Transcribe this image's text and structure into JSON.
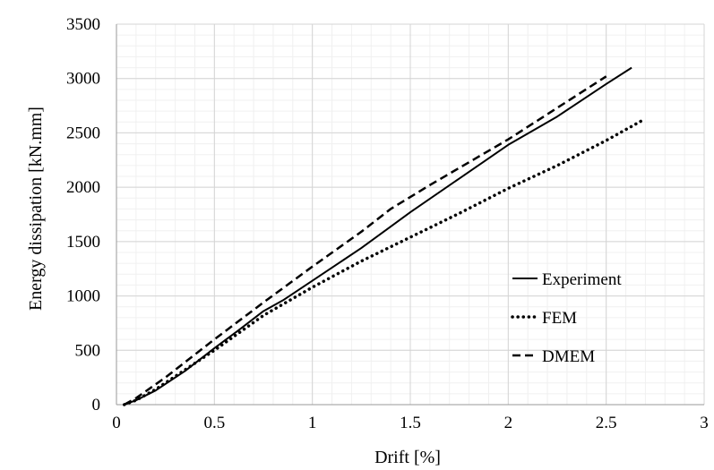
{
  "chart_data": {
    "type": "line",
    "title": "",
    "xlabel": "Drift [%]",
    "ylabel": "Energy dissipation [kN.mm]",
    "xlim": [
      0,
      3
    ],
    "ylim": [
      0,
      3500
    ],
    "x_major_ticks": [
      0,
      0.5,
      1,
      1.5,
      2,
      2.5,
      3
    ],
    "x_tick_labels": [
      "0",
      "0.5",
      "1",
      "1.5",
      "2",
      "2.5",
      "3"
    ],
    "y_major_ticks": [
      0,
      500,
      1000,
      1500,
      2000,
      2500,
      3000,
      3500
    ],
    "y_tick_labels": [
      "0",
      "500",
      "1000",
      "1500",
      "2000",
      "2500",
      "3000",
      "3500"
    ],
    "grid": "major and minor",
    "legend_position": "right",
    "series": [
      {
        "name": "Experiment",
        "style": "solid",
        "x": [
          0.04,
          0.1,
          0.2,
          0.35,
          0.5,
          0.62,
          0.75,
          0.85,
          1.0,
          1.25,
          1.5,
          1.75,
          2.0,
          2.25,
          2.5,
          2.63
        ],
        "y": [
          0,
          40,
          130,
          310,
          520,
          680,
          860,
          960,
          1140,
          1440,
          1770,
          2080,
          2390,
          2650,
          2950,
          3100
        ]
      },
      {
        "name": "FEM",
        "style": "dotted",
        "x": [
          0.04,
          0.1,
          0.2,
          0.35,
          0.5,
          0.75,
          1.0,
          1.25,
          1.5,
          1.75,
          2.0,
          2.25,
          2.5,
          2.7
        ],
        "y": [
          0,
          40,
          140,
          320,
          500,
          820,
          1080,
          1320,
          1540,
          1760,
          1990,
          2200,
          2430,
          2630
        ]
      },
      {
        "name": "DMEM",
        "style": "dashed",
        "x": [
          0.04,
          0.1,
          0.25,
          0.5,
          0.75,
          1.0,
          1.25,
          1.4,
          1.6,
          1.8,
          2.0,
          2.25,
          2.5
        ],
        "y": [
          0,
          60,
          250,
          600,
          940,
          1270,
          1590,
          1800,
          2020,
          2230,
          2440,
          2730,
          3020
        ]
      }
    ]
  }
}
